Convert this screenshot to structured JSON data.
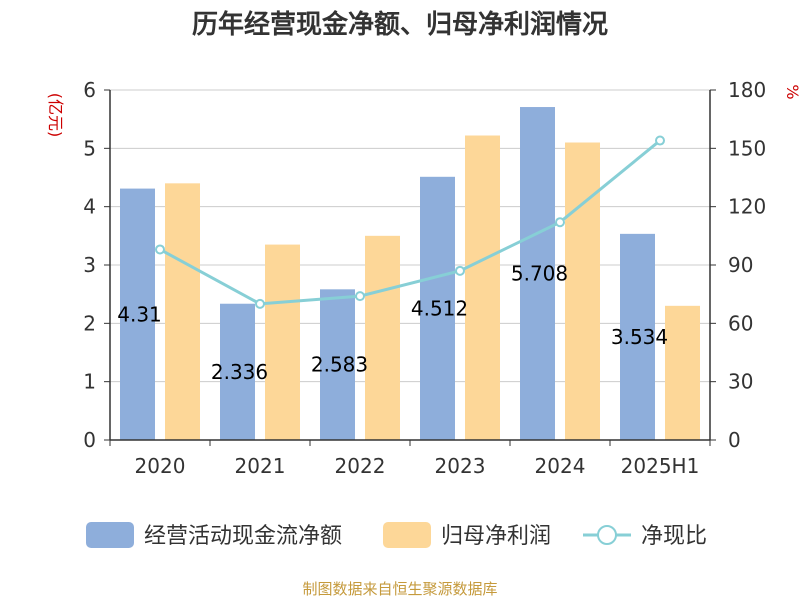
{
  "title": "历年经营现金净额、归母净利润情况",
  "source": "制图数据来自恒生聚源数据库",
  "colors": {
    "operating_cash": "#8eaedb",
    "net_profit": "#fdd798",
    "ratio": "#87cfd6",
    "axis_unit": "#cc0000",
    "title": "#333333",
    "source": "#c59a3c"
  },
  "chart_data": {
    "type": "bar",
    "title": "历年经营现金净额、归母净利润情况",
    "categories": [
      "2020",
      "2021",
      "2022",
      "2023",
      "2024",
      "2025H1"
    ],
    "series": [
      {
        "name": "经营活动现金流净额",
        "type": "bar",
        "axis": "left",
        "values": [
          4.31,
          2.336,
          2.583,
          4.512,
          5.708,
          3.534
        ],
        "labels": [
          "4.31",
          "2.336",
          "2.583",
          "4.512",
          "5.708",
          "3.534"
        ]
      },
      {
        "name": "归母净利润",
        "type": "bar",
        "axis": "left",
        "values": [
          4.4,
          3.35,
          3.5,
          5.22,
          5.1,
          2.3
        ]
      },
      {
        "name": "净现比",
        "type": "line",
        "axis": "right",
        "values": [
          98,
          70,
          74,
          87,
          112,
          154
        ]
      }
    ],
    "y_left": {
      "label": "(亿元)",
      "ylim": [
        0,
        6
      ],
      "ticks": [
        "0",
        "1",
        "2",
        "3",
        "4",
        "5",
        "6"
      ]
    },
    "y_right": {
      "label": "%",
      "ylim": [
        0,
        180
      ],
      "ticks": [
        "0",
        "30",
        "60",
        "90",
        "120",
        "150",
        "180"
      ]
    },
    "grid": true,
    "legend_position": "bottom"
  }
}
